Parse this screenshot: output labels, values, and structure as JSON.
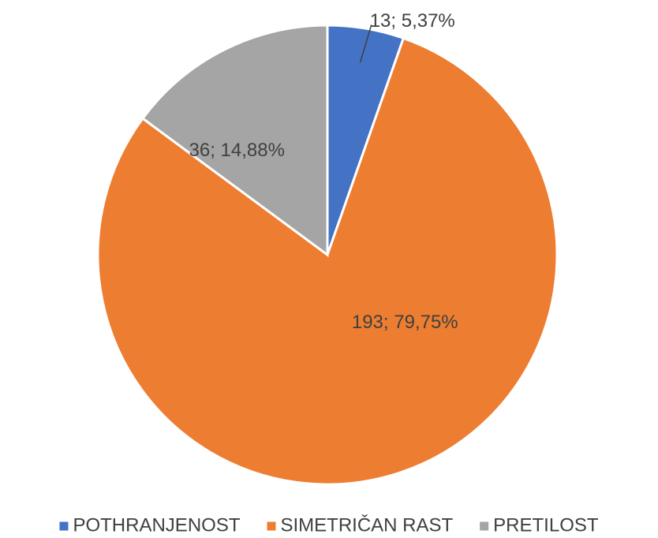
{
  "chart_data": {
    "type": "pie",
    "categories": [
      "POTHRANJENOST",
      "SIMETRIČAN RAST",
      "PRETILOST"
    ],
    "values": [
      13,
      193,
      36
    ],
    "value_labels": [
      "13; 5,37%",
      "193; 79,75%",
      "36; 14,88%"
    ],
    "colors": [
      "#4472c4",
      "#ed7d31",
      "#a5a5a5"
    ],
    "legend": "bottom"
  }
}
